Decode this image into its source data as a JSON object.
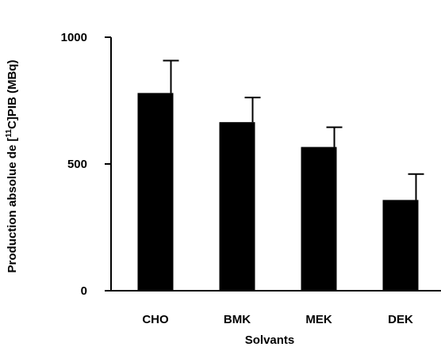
{
  "chart_data": {
    "type": "bar",
    "title": "",
    "xlabel": "Solvants",
    "ylabel_parts": {
      "before": "Production absolue de [",
      "superscript": "11",
      "after": "C]PIB (MBq)"
    },
    "categories": [
      "CHO",
      "BMK",
      "MEK",
      "DEK"
    ],
    "series": [
      {
        "values": [
          780,
          665,
          567,
          358
        ],
        "error": [
          128,
          97,
          78,
          102
        ]
      }
    ],
    "ylim": [
      0,
      1000
    ],
    "yticks": [
      0,
      500,
      1000
    ],
    "grid": false,
    "legend": "none",
    "colors": {
      "bar": "#000000",
      "axis": "#000000",
      "background": "#ffffff"
    }
  }
}
